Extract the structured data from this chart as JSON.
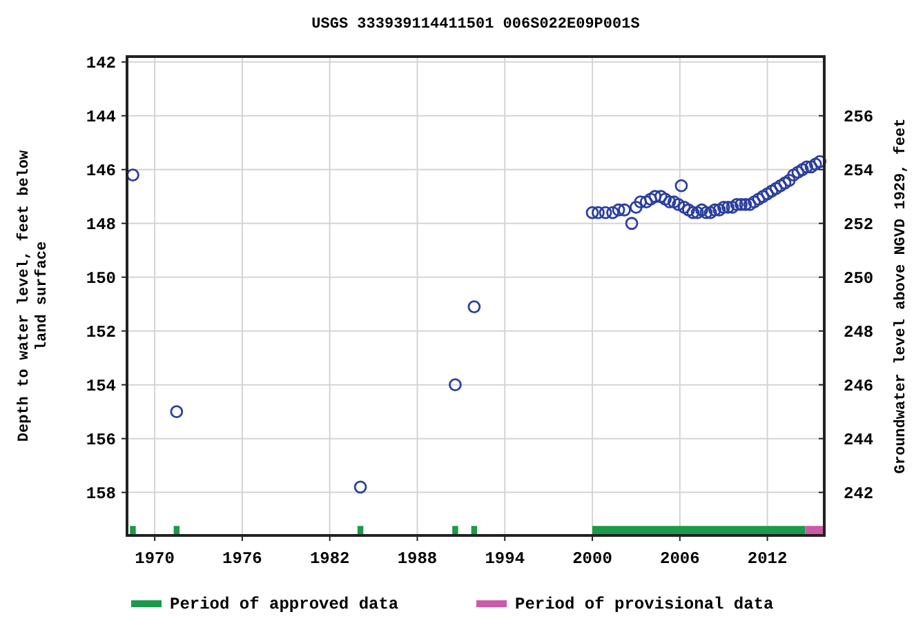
{
  "chart_data": {
    "type": "scatter",
    "title": "USGS 333939114411501 006S022E09P001S",
    "ylabel": "Depth to water level, feet below land surface",
    "y2label": "Groundwater level above NGVD 1929, feet",
    "xlim": [
      1968.1,
      2015.9
    ],
    "xticks": [
      1970,
      1976,
      1982,
      1988,
      1994,
      2000,
      2006,
      2012
    ],
    "ylim": [
      159.6,
      141.8
    ],
    "yticks": [
      142,
      144,
      146,
      148,
      150,
      152,
      154,
      156,
      158
    ],
    "y2lim": [
      240.4,
      258.2
    ],
    "y2ticks": [
      242,
      244,
      246,
      248,
      250,
      252,
      254,
      256
    ],
    "grid": true,
    "marker": "circle",
    "legend": "bottom",
    "series": [
      {
        "color": "#2b3f9e",
        "x": [
          1968.5,
          1971.5,
          1984.1,
          1990.6,
          1991.9,
          2000.0,
          2000.4,
          2000.9,
          2001.4,
          2001.8,
          2002.2,
          2002.7,
          2003.0,
          2003.3,
          2003.7,
          2004.0,
          2004.3,
          2004.7,
          2005.0,
          2005.3,
          2005.6,
          2005.9,
          2006.1,
          2006.3,
          2006.6,
          2006.9,
          2007.2,
          2007.5,
          2007.8,
          2008.1,
          2008.4,
          2008.7,
          2009.0,
          2009.3,
          2009.6,
          2009.9,
          2010.2,
          2010.5,
          2010.8,
          2011.1,
          2011.4,
          2011.7,
          2012.0,
          2012.3,
          2012.6,
          2012.9,
          2013.2,
          2013.5,
          2013.8,
          2014.1,
          2014.4,
          2014.7,
          2015.0,
          2015.3,
          2015.6
        ],
        "values": [
          146.2,
          155.0,
          157.8,
          154.0,
          151.1,
          147.6,
          147.6,
          147.6,
          147.6,
          147.5,
          147.5,
          148.0,
          147.4,
          147.2,
          147.2,
          147.1,
          147.0,
          147.0,
          147.1,
          147.2,
          147.2,
          147.3,
          146.6,
          147.4,
          147.5,
          147.6,
          147.6,
          147.5,
          147.6,
          147.6,
          147.5,
          147.5,
          147.4,
          147.4,
          147.4,
          147.3,
          147.3,
          147.3,
          147.3,
          147.2,
          147.1,
          147.0,
          146.9,
          146.8,
          146.7,
          146.6,
          146.5,
          146.4,
          146.2,
          146.1,
          146.0,
          145.9,
          145.9,
          145.8,
          145.7
        ]
      },
      {
        "type": "line",
        "marker": "none",
        "name": "Period of approved data",
        "color": "#1a9a4a",
        "x": [
          1968.3,
          1968.7,
          1970.0,
          1971.3,
          1971.7,
          1978.0,
          1983.9,
          1984.3,
          1987.0,
          1990.4,
          1990.8,
          1991.2,
          1991.7,
          1992.1,
          1996.0,
          2000.0,
          2014.6
        ],
        "values": [
          159.4,
          159.4,
          null,
          159.4,
          159.4,
          null,
          159.4,
          159.4,
          null,
          159.4,
          159.4,
          null,
          159.4,
          159.4,
          null,
          159.4,
          159.4
        ]
      },
      {
        "type": "line",
        "marker": "none",
        "name": "Period of provisional data",
        "color": "#cc5aa8",
        "x": [
          2014.6,
          2015.9
        ],
        "values": [
          159.4,
          159.4
        ]
      }
    ]
  }
}
